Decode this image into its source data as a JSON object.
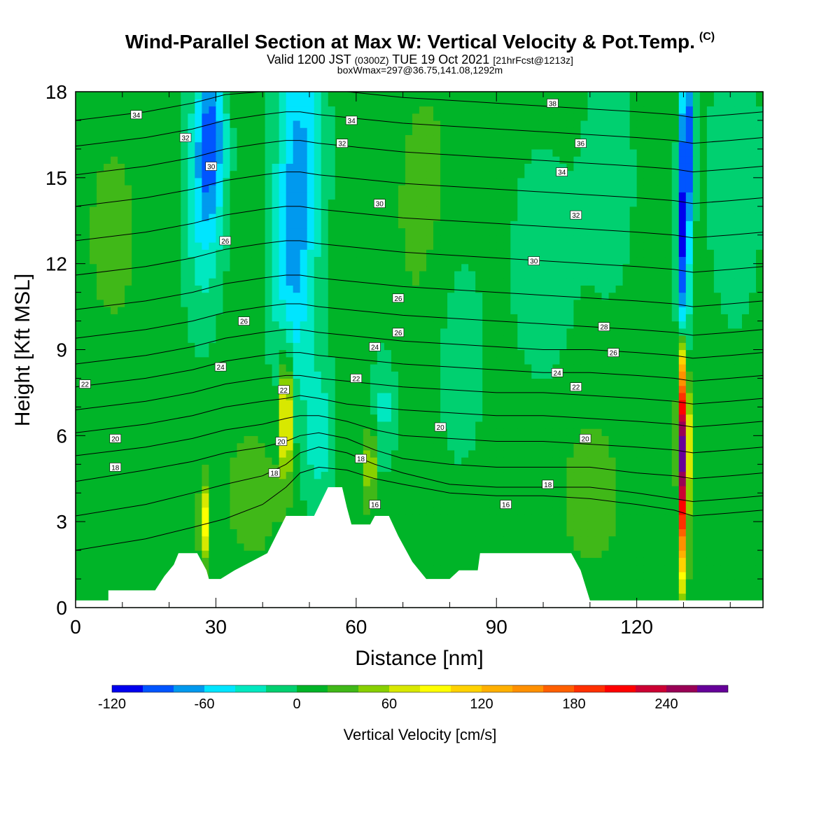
{
  "header": {
    "title": "Wind-Parallel Section at Max W: Vertical Velocity & Pot.Temp.",
    "copyright": "(C)",
    "valid_prefix": "Valid 1200 JST",
    "valid_utc": "(0300Z)",
    "valid_suffix": "TUE 19 Oct 2021",
    "forecast": "[21hrFcst@1213z]",
    "box_info": "boxWmax=297@36.75,141.08,1292m"
  },
  "chart_data": {
    "type": "heatmap",
    "xlabel": "Distance [nm]",
    "ylabel": "Height [Kft MSL]",
    "xlim": [
      0,
      147
    ],
    "ylim": [
      0,
      18
    ],
    "xticks": [
      0,
      30,
      60,
      90,
      120
    ],
    "yticks": [
      0,
      3,
      6,
      9,
      12,
      15,
      18
    ],
    "colorbar": {
      "label": "Vertical Velocity [cm/s]",
      "tick_values": [
        -120,
        -60,
        0,
        60,
        120,
        180,
        240
      ],
      "tick_labels": [
        "-120",
        "-60",
        "0",
        "60",
        "120",
        "180",
        "240"
      ],
      "min": -120,
      "max": 280,
      "colors": [
        "#0000ee",
        "#0055ff",
        "#0099ee",
        "#00e5ff",
        "#00e8c0",
        "#00d070",
        "#00b428",
        "#40b818",
        "#88d000",
        "#d8e800",
        "#ffff00",
        "#ffd200",
        "#ffb000",
        "#ff9000",
        "#ff6000",
        "#ff3000",
        "#ff0000",
        "#cc0033",
        "#990055",
        "#660099"
      ]
    },
    "background_color_value": 10,
    "features": [
      {
        "x": 29,
        "y": 16.5,
        "w": -80,
        "sx": 2.2,
        "sy": 2.2
      },
      {
        "x": 27,
        "y": 14.0,
        "w": -45,
        "sx": 3.0,
        "sy": 3.0
      },
      {
        "x": 48,
        "y": 16.0,
        "w": -70,
        "sx": 3.5,
        "sy": 3.5
      },
      {
        "x": 46,
        "y": 11.0,
        "w": -50,
        "sx": 3.0,
        "sy": 2.8
      },
      {
        "x": 52,
        "y": 6.0,
        "w": -40,
        "sx": 2.5,
        "sy": 2.0
      },
      {
        "x": 66,
        "y": 7.0,
        "w": -35,
        "sx": 2.0,
        "sy": 1.5
      },
      {
        "x": 82,
        "y": 9.0,
        "w": -25,
        "sx": 4.0,
        "sy": 3.0
      },
      {
        "x": 100,
        "y": 12.0,
        "w": -25,
        "sx": 5.0,
        "sy": 3.0
      },
      {
        "x": 130,
        "y": 12.5,
        "w": -110,
        "sx": 0.9,
        "sy": 3.0
      },
      {
        "x": 131,
        "y": 16.5,
        "w": -90,
        "sx": 1.0,
        "sy": 2.0
      },
      {
        "x": 141,
        "y": 15.0,
        "w": -30,
        "sx": 4.0,
        "sy": 3.5
      },
      {
        "x": 114,
        "y": 15.0,
        "w": -25,
        "sx": 4.0,
        "sy": 3.0
      },
      {
        "x": 45,
        "y": 6.8,
        "w": 110,
        "sx": 0.9,
        "sy": 1.6
      },
      {
        "x": 27.5,
        "y": 3.0,
        "w": 80,
        "sx": 0.7,
        "sy": 1.0
      },
      {
        "x": 63,
        "y": 5.0,
        "w": 60,
        "sx": 0.8,
        "sy": 1.0
      },
      {
        "x": 130,
        "y": 6.0,
        "w": 240,
        "sx": 0.75,
        "sy": 1.6
      },
      {
        "x": 130,
        "y": 3.0,
        "w": 150,
        "sx": 0.6,
        "sy": 1.8
      },
      {
        "x": 129.5,
        "y": 8.5,
        "w": 90,
        "sx": 0.5,
        "sy": 0.9
      },
      {
        "x": 8,
        "y": 13.0,
        "w": 15,
        "sx": 5.0,
        "sy": 3.0
      },
      {
        "x": 75,
        "y": 14.0,
        "w": 15,
        "sx": 6.0,
        "sy": 4.0
      },
      {
        "x": 38,
        "y": 4.0,
        "w": 25,
        "sx": 4.0,
        "sy": 1.5
      },
      {
        "x": 110,
        "y": 4.0,
        "w": 20,
        "sx": 5.0,
        "sy": 2.0
      }
    ],
    "terrain": [
      [
        0,
        0.25
      ],
      [
        7,
        0.25
      ],
      [
        7,
        0.6
      ],
      [
        17,
        0.6
      ],
      [
        19,
        1.1
      ],
      [
        21,
        1.5
      ],
      [
        22,
        1.9
      ],
      [
        26,
        1.9
      ],
      [
        28,
        1.3
      ],
      [
        28.5,
        1.0
      ],
      [
        31,
        1.0
      ],
      [
        34,
        1.3
      ],
      [
        41,
        1.9
      ],
      [
        45,
        3.2
      ],
      [
        51,
        3.2
      ],
      [
        54,
        4.2
      ],
      [
        57,
        4.2
      ],
      [
        58,
        3.5
      ],
      [
        59,
        2.9
      ],
      [
        63,
        2.9
      ],
      [
        64,
        3.2
      ],
      [
        67,
        3.2
      ],
      [
        69,
        2.5
      ],
      [
        72,
        1.6
      ],
      [
        75,
        1.0
      ],
      [
        80,
        1.0
      ],
      [
        82,
        1.3
      ],
      [
        86,
        1.3
      ],
      [
        86.5,
        1.9
      ],
      [
        106,
        1.9
      ],
      [
        108,
        1.3
      ],
      [
        110,
        0.25
      ],
      [
        147,
        0.25
      ]
    ],
    "isentropes": {
      "x": [
        0,
        15,
        25,
        32,
        40,
        45,
        48,
        52,
        58,
        64,
        70,
        80,
        90,
        100,
        110,
        120,
        128,
        132,
        140,
        147
      ],
      "lines": [
        [
          2.0,
          2.4,
          2.8,
          3.1,
          3.6,
          4.2,
          4.7,
          4.9,
          4.8,
          4.5,
          4.3,
          4.0,
          3.9,
          3.9,
          3.8,
          3.6,
          3.4,
          3.2,
          3.3,
          3.4
        ],
        [
          3.2,
          3.6,
          4.0,
          4.3,
          4.6,
          5.0,
          5.4,
          5.6,
          5.4,
          5.0,
          4.7,
          4.3,
          4.2,
          4.2,
          4.2,
          4.0,
          3.8,
          3.7,
          3.8,
          3.9
        ],
        [
          4.4,
          4.8,
          5.1,
          5.4,
          5.6,
          5.8,
          6.0,
          6.1,
          5.9,
          5.5,
          5.2,
          5.0,
          4.9,
          4.9,
          4.9,
          4.7,
          4.6,
          4.5,
          4.6,
          4.7
        ],
        [
          5.3,
          5.6,
          5.9,
          6.2,
          6.4,
          6.6,
          6.7,
          6.7,
          6.5,
          6.2,
          6.0,
          5.9,
          5.8,
          5.8,
          5.7,
          5.6,
          5.5,
          5.4,
          5.5,
          5.6
        ],
        [
          6.1,
          6.4,
          6.7,
          7.0,
          7.2,
          7.3,
          7.4,
          7.3,
          7.1,
          7.0,
          6.9,
          6.8,
          6.7,
          6.7,
          6.6,
          6.5,
          6.4,
          6.3,
          6.4,
          6.5
        ],
        [
          6.9,
          7.2,
          7.5,
          7.8,
          8.0,
          8.1,
          8.1,
          8.0,
          7.9,
          7.8,
          7.7,
          7.6,
          7.5,
          7.5,
          7.4,
          7.3,
          7.2,
          7.1,
          7.2,
          7.3
        ],
        [
          7.7,
          8.0,
          8.3,
          8.6,
          8.8,
          8.9,
          8.9,
          8.8,
          8.7,
          8.6,
          8.5,
          8.4,
          8.3,
          8.2,
          8.2,
          8.1,
          8.0,
          7.9,
          8.0,
          8.1
        ],
        [
          8.5,
          8.8,
          9.1,
          9.4,
          9.6,
          9.7,
          9.7,
          9.6,
          9.5,
          9.4,
          9.3,
          9.2,
          9.1,
          9.0,
          9.0,
          8.9,
          8.8,
          8.7,
          8.8,
          8.9
        ],
        [
          9.4,
          9.7,
          10.0,
          10.3,
          10.5,
          10.6,
          10.6,
          10.5,
          10.4,
          10.3,
          10.2,
          10.1,
          10.0,
          9.9,
          9.8,
          9.7,
          9.6,
          9.5,
          9.6,
          9.7
        ],
        [
          10.4,
          10.7,
          11.0,
          11.3,
          11.5,
          11.6,
          11.6,
          11.5,
          11.4,
          11.3,
          11.2,
          11.1,
          11.0,
          10.9,
          10.8,
          10.7,
          10.6,
          10.5,
          10.6,
          10.7
        ],
        [
          11.6,
          11.9,
          12.2,
          12.5,
          12.7,
          12.8,
          12.8,
          12.7,
          12.6,
          12.5,
          12.4,
          12.3,
          12.2,
          12.1,
          12.0,
          11.9,
          11.8,
          11.7,
          11.8,
          11.9
        ],
        [
          12.8,
          13.1,
          13.4,
          13.7,
          13.9,
          14.0,
          14.0,
          13.9,
          13.8,
          13.7,
          13.6,
          13.5,
          13.4,
          13.3,
          13.2,
          13.1,
          13.0,
          12.9,
          13.0,
          13.1
        ],
        [
          14.0,
          14.3,
          14.6,
          14.9,
          15.1,
          15.2,
          15.2,
          15.1,
          15.0,
          14.9,
          14.8,
          14.7,
          14.6,
          14.5,
          14.4,
          14.3,
          14.2,
          14.1,
          14.2,
          14.3
        ],
        [
          15.1,
          15.4,
          15.7,
          16.0,
          16.2,
          16.3,
          16.3,
          16.2,
          16.1,
          16.0,
          15.9,
          15.8,
          15.7,
          15.6,
          15.5,
          15.4,
          15.3,
          15.2,
          15.3,
          15.4
        ],
        [
          16.1,
          16.4,
          16.7,
          17.0,
          17.2,
          17.3,
          17.3,
          17.2,
          17.1,
          17.0,
          16.9,
          16.8,
          16.7,
          16.6,
          16.5,
          16.4,
          16.3,
          16.2,
          16.3,
          16.4
        ],
        [
          17.0,
          17.3,
          17.6,
          17.9,
          18.0,
          18.0,
          18.0,
          18.0,
          18.0,
          17.9,
          17.8,
          17.7,
          17.6,
          17.5,
          17.4,
          17.3,
          17.2,
          17.1,
          17.2,
          17.3
        ]
      ]
    },
    "isentrope_labels": [
      {
        "text": "34",
        "x": 13,
        "y": 17.2
      },
      {
        "text": "32",
        "x": 23.5,
        "y": 16.4
      },
      {
        "text": "30",
        "x": 29,
        "y": 15.4
      },
      {
        "text": "26",
        "x": 32,
        "y": 12.8
      },
      {
        "text": "26",
        "x": 36,
        "y": 10.0
      },
      {
        "text": "24",
        "x": 31,
        "y": 8.4
      },
      {
        "text": "22",
        "x": 2,
        "y": 7.8
      },
      {
        "text": "20",
        "x": 8.5,
        "y": 5.9
      },
      {
        "text": "18",
        "x": 8.5,
        "y": 4.9
      },
      {
        "text": "22",
        "x": 44.5,
        "y": 7.6
      },
      {
        "text": "20",
        "x": 44,
        "y": 5.8
      },
      {
        "text": "18",
        "x": 42.5,
        "y": 4.7
      },
      {
        "text": "34",
        "x": 59,
        "y": 17.0
      },
      {
        "text": "32",
        "x": 57,
        "y": 16.2
      },
      {
        "text": "30",
        "x": 65,
        "y": 14.1
      },
      {
        "text": "26",
        "x": 69,
        "y": 10.8
      },
      {
        "text": "26",
        "x": 69,
        "y": 9.6
      },
      {
        "text": "24",
        "x": 64,
        "y": 9.1
      },
      {
        "text": "22",
        "x": 60,
        "y": 8.0
      },
      {
        "text": "20",
        "x": 78,
        "y": 6.3
      },
      {
        "text": "18",
        "x": 61,
        "y": 5.2
      },
      {
        "text": "16",
        "x": 64,
        "y": 3.6
      },
      {
        "text": "16",
        "x": 92,
        "y": 3.6
      },
      {
        "text": "38",
        "x": 102,
        "y": 17.6
      },
      {
        "text": "36",
        "x": 108,
        "y": 16.2
      },
      {
        "text": "34",
        "x": 104,
        "y": 15.2
      },
      {
        "text": "32",
        "x": 107,
        "y": 13.7
      },
      {
        "text": "30",
        "x": 98,
        "y": 12.1
      },
      {
        "text": "28",
        "x": 113,
        "y": 9.8
      },
      {
        "text": "26",
        "x": 115,
        "y": 8.9
      },
      {
        "text": "24",
        "x": 103,
        "y": 8.2
      },
      {
        "text": "22",
        "x": 107,
        "y": 7.7
      },
      {
        "text": "20",
        "x": 109,
        "y": 5.9
      },
      {
        "text": "18",
        "x": 101,
        "y": 4.3
      }
    ]
  }
}
